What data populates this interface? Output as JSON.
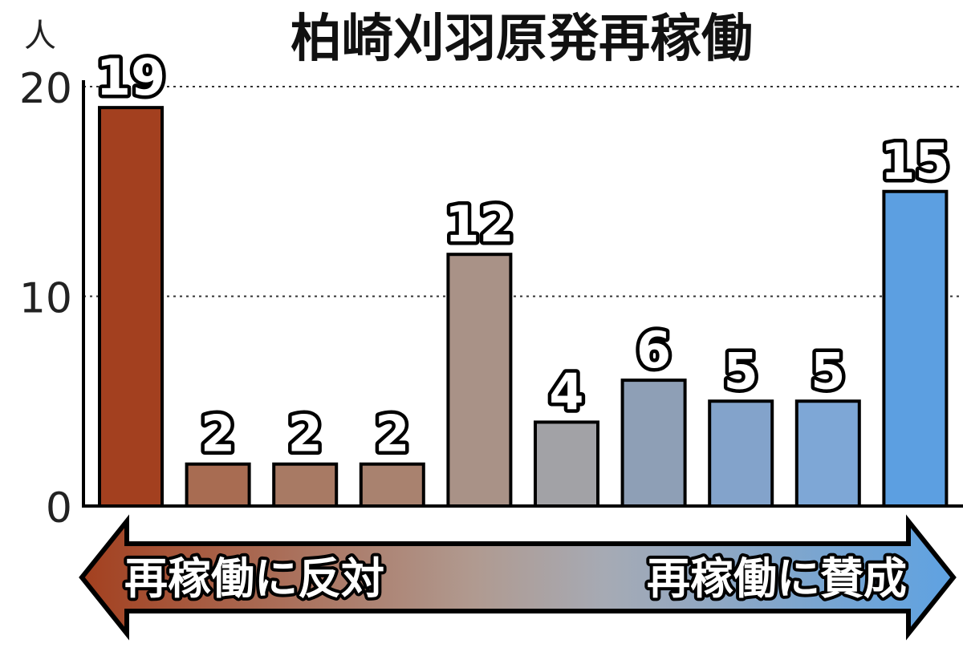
{
  "chart_data": {
    "type": "bar",
    "title": "柏崎刈羽原発再稼働",
    "unit": "人",
    "categories": [
      "",
      "",
      "",
      "",
      "",
      "",
      "",
      "",
      "",
      ""
    ],
    "values": [
      19,
      2,
      2,
      2,
      12,
      4,
      6,
      5,
      5,
      15
    ],
    "data_labels": [
      "19",
      "2",
      "2",
      "2",
      "12",
      "4",
      "6",
      "5",
      "5",
      "15"
    ],
    "y_ticks": [
      "0",
      "10",
      "20"
    ],
    "ylim": [
      0,
      20
    ],
    "grid": "dotted horizontal at 10 and 20",
    "scale_left_label": "再稼働に反対",
    "scale_right_label": "再稼働に賛成",
    "colors": [
      "#a3401f",
      "#a86c52",
      "#a87a64",
      "#a9826f",
      "#a99287",
      "#a2a2a6",
      "#8e9fb6",
      "#83a3cb",
      "#7ea7d6",
      "#5c9fe1"
    ]
  }
}
